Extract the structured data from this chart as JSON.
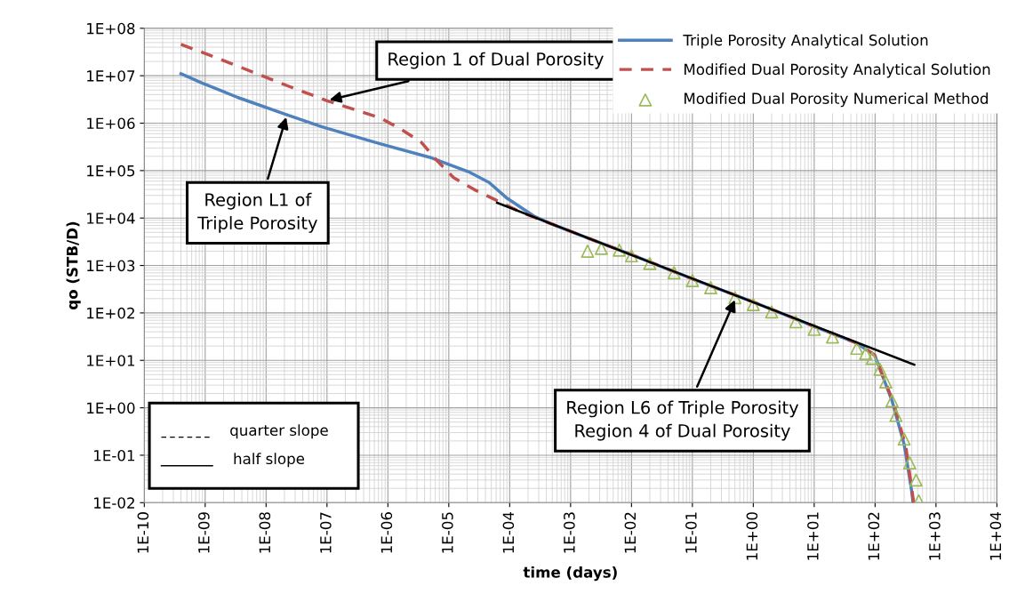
{
  "chart_data": {
    "type": "line",
    "xlabel": "time (days)",
    "ylabel": "qo (STB/D)",
    "log": "xy",
    "grid": true,
    "legend": "top right",
    "xlim": [
      1e-10,
      10000.0
    ],
    "ylim": [
      0.01,
      100000000.0
    ],
    "xticks": [
      {
        "value": 1e-10,
        "label": "1E-10"
      },
      {
        "value": 1e-09,
        "label": "1E-09"
      },
      {
        "value": 1e-08,
        "label": "1E-08"
      },
      {
        "value": 1e-07,
        "label": "1E-07"
      },
      {
        "value": 1e-06,
        "label": "1E-06"
      },
      {
        "value": 1e-05,
        "label": "1E-05"
      },
      {
        "value": 0.0001,
        "label": "1E-04"
      },
      {
        "value": 0.001,
        "label": "1E-03"
      },
      {
        "value": 0.01,
        "label": "1E-02"
      },
      {
        "value": 0.1,
        "label": "1E-01"
      },
      {
        "value": 1,
        "label": "1E+00"
      },
      {
        "value": 10,
        "label": "1E+01"
      },
      {
        "value": 100,
        "label": "1E+02"
      },
      {
        "value": 1000,
        "label": "1E+03"
      },
      {
        "value": 10000,
        "label": "1E+04"
      }
    ],
    "yticks": [
      {
        "value": 0.01,
        "label": "1E-02"
      },
      {
        "value": 0.1,
        "label": "1E-01"
      },
      {
        "value": 1,
        "label": "1E+00"
      },
      {
        "value": 10,
        "label": "1E+01"
      },
      {
        "value": 100,
        "label": "1E+02"
      },
      {
        "value": 1000,
        "label": "1E+03"
      },
      {
        "value": 10000,
        "label": "1E+04"
      },
      {
        "value": 100000,
        "label": "1E+05"
      },
      {
        "value": 1000000,
        "label": "1E+06"
      },
      {
        "value": 10000000,
        "label": "1E+07"
      },
      {
        "value": 100000000,
        "label": "1E+08"
      }
    ],
    "series": [
      {
        "name": "Triple Porosity Analytical Solution",
        "color": "#4f81bd",
        "line_style": "solid",
        "marker": "none",
        "x": [
          4e-10,
          8.7e-10,
          3.4e-09,
          2.2e-08,
          8.5e-08,
          7.4e-07,
          4.9e-06,
          2.1e-05,
          4.6e-05,
          9.1e-05,
          0.00025,
          0.00044,
          0.0019,
          0.01,
          0.1,
          1,
          10,
          50,
          98,
          190,
          300,
          400,
          420
        ],
        "values": [
          11000000.0,
          7100000.0,
          3500000.0,
          1500000.0,
          830000.0,
          370000.0,
          190000.0,
          95000.0,
          56000.0,
          26000.0,
          11000.0,
          7900.0,
          3800.0,
          1700.0,
          520,
          170,
          52,
          23,
          13,
          1.4,
          0.17,
          0.017,
          0.01
        ]
      },
      {
        "name": "Modified Dual Porosity Analytical Solution",
        "color": "#c0504d",
        "line_style": "dashed",
        "marker": "none",
        "x": [
          4e-10,
          2.7e-09,
          2.2e-08,
          9.8e-08,
          7.4e-07,
          1.6e-06,
          3.5e-06,
          6.2e-06,
          1.2e-05,
          2.6e-05,
          5.9e-05,
          0.00014,
          0.00044,
          0.0019,
          0.01,
          0.1,
          1,
          10,
          50,
          98,
          200,
          320,
          430
        ],
        "values": [
          46000000.0,
          18000000.0,
          6200000.0,
          3000000.0,
          1300000.0,
          760000.0,
          400000.0,
          170000.0,
          71000.0,
          40000.0,
          24000.0,
          14000.0,
          7900.0,
          3800.0,
          1700.0,
          520,
          170,
          52,
          23,
          13,
          1.3,
          0.15,
          0.01
        ]
      },
      {
        "name": "Modified Dual Porosity Numerical Method",
        "type": "scatter",
        "color": "#9bbb59",
        "marker": "triangle",
        "x": [
          0.0019,
          0.0032,
          0.0063,
          0.01,
          0.02,
          0.05,
          0.1,
          0.2,
          0.5,
          1,
          2,
          5,
          10,
          20,
          50,
          70,
          90,
          120,
          150,
          190,
          220,
          300,
          370,
          470,
          520
        ],
        "values": [
          2000.0,
          2300.0,
          2100.0,
          1600.0,
          1100.0,
          700,
          480,
          340,
          210,
          150,
          105,
          65,
          45,
          31,
          18,
          14,
          11,
          6.5,
          3.5,
          1.4,
          0.69,
          0.22,
          0.069,
          0.03,
          0.011
        ]
      },
      {
        "color": "#000000",
        "line_style": "solid",
        "marker": "none",
        "x": [
          6.2e-05,
          440
        ],
        "values": [
          21000.0,
          8.1
        ]
      }
    ],
    "annotations": [
      {
        "text": "Region 1 of Dual Porosity",
        "x": 1e-07,
        "y": 3000000.0
      },
      {
        "text": "Region L1 of\nTriple Porosity",
        "x": 2.2e-08,
        "y": 1500000.0
      },
      {
        "text": "Region L6 of Triple Porosity\nRegion 4 of Dual Porosity",
        "x": 0.52,
        "y": 210
      },
      "quarter slope",
      "half slope"
    ]
  }
}
